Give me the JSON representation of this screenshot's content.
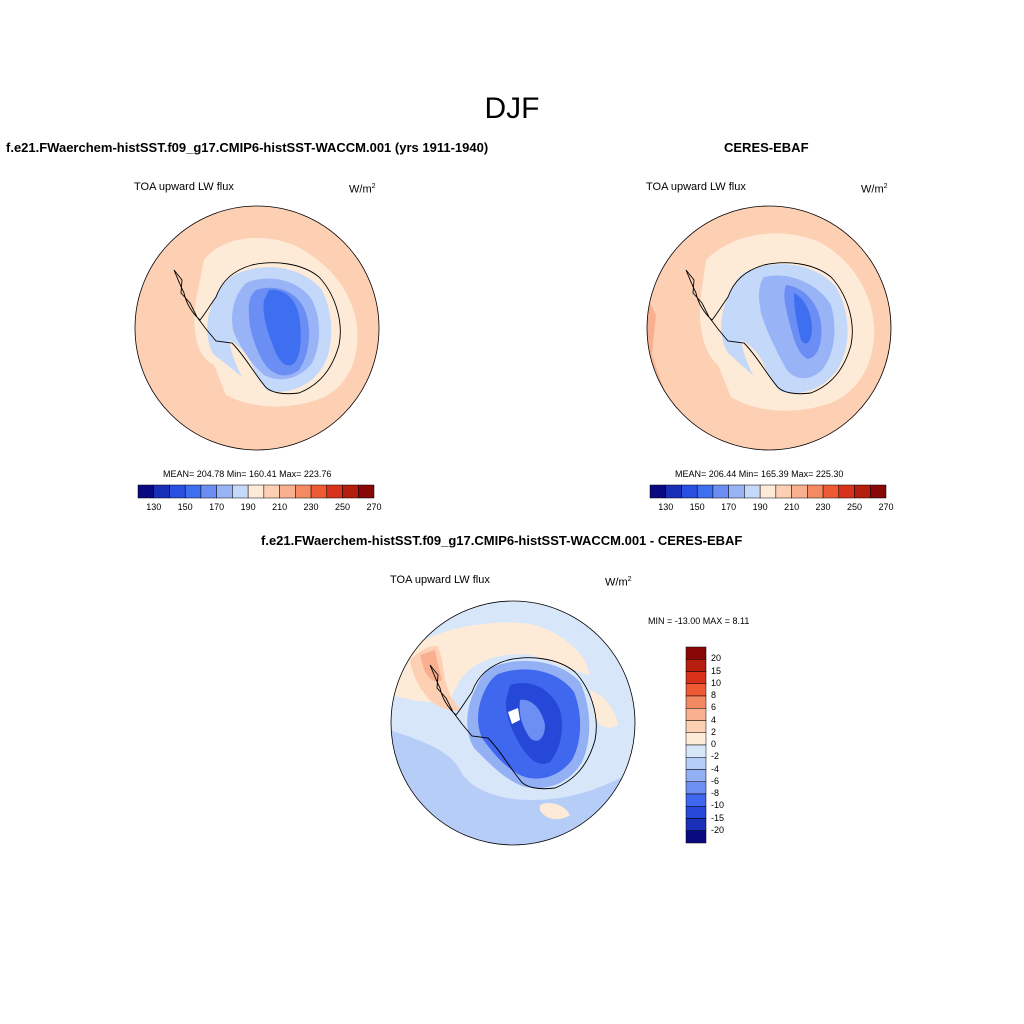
{
  "title": "DJF",
  "panels": [
    {
      "title": "f.e21.FWaerchem-histSST.f09_g17.CMIP6-histSST-WACCM.001 (yrs 1911-1940)",
      "variable": "TOA upward LW flux",
      "units": "W/m",
      "units_sup": "2",
      "stats": "MEAN= 204.78  Min= 160.41  Max= 223.76"
    },
    {
      "title": "CERES-EBAF",
      "variable": "TOA upward LW flux",
      "units": "W/m",
      "units_sup": "2",
      "stats": "MEAN= 206.44  Min= 165.39  Max= 225.30"
    },
    {
      "title": "f.e21.FWaerchem-histSST.f09_g17.CMIP6-histSST-WACCM.001 - CERES-EBAF",
      "variable": "TOA upward LW flux",
      "units": "W/m",
      "units_sup": "2",
      "stats": "MIN = -13.00 MAX =   8.11"
    }
  ],
  "colorbar_abs": {
    "labels": [
      "130",
      "150",
      "170",
      "190",
      "210",
      "230",
      "250",
      "270"
    ],
    "colors": [
      "#0a0a80",
      "#1a2fb8",
      "#2a4fe0",
      "#3e6ff0",
      "#6a8ef4",
      "#98b3f6",
      "#c4d8fa",
      "#fdebd8",
      "#fdd0b4",
      "#f8b090",
      "#f48a62",
      "#ee5a34",
      "#d8331a",
      "#b41e0e",
      "#880808"
    ]
  },
  "colorbar_diff": {
    "labels": [
      "20",
      "15",
      "10",
      "8",
      "6",
      "4",
      "2",
      "0",
      "-2",
      "-4",
      "-6",
      "-8",
      "-10",
      "-15",
      "-20"
    ],
    "colors": [
      "#880808",
      "#b81e0e",
      "#d8331a",
      "#ee5a34",
      "#f48a62",
      "#f8b090",
      "#fdd0b4",
      "#fdebd8",
      "#d8e6fa",
      "#b6cdf8",
      "#93b0f5",
      "#6d8ef2",
      "#4068ee",
      "#2548d8",
      "#1a2fb8",
      "#0a0a80"
    ]
  }
}
